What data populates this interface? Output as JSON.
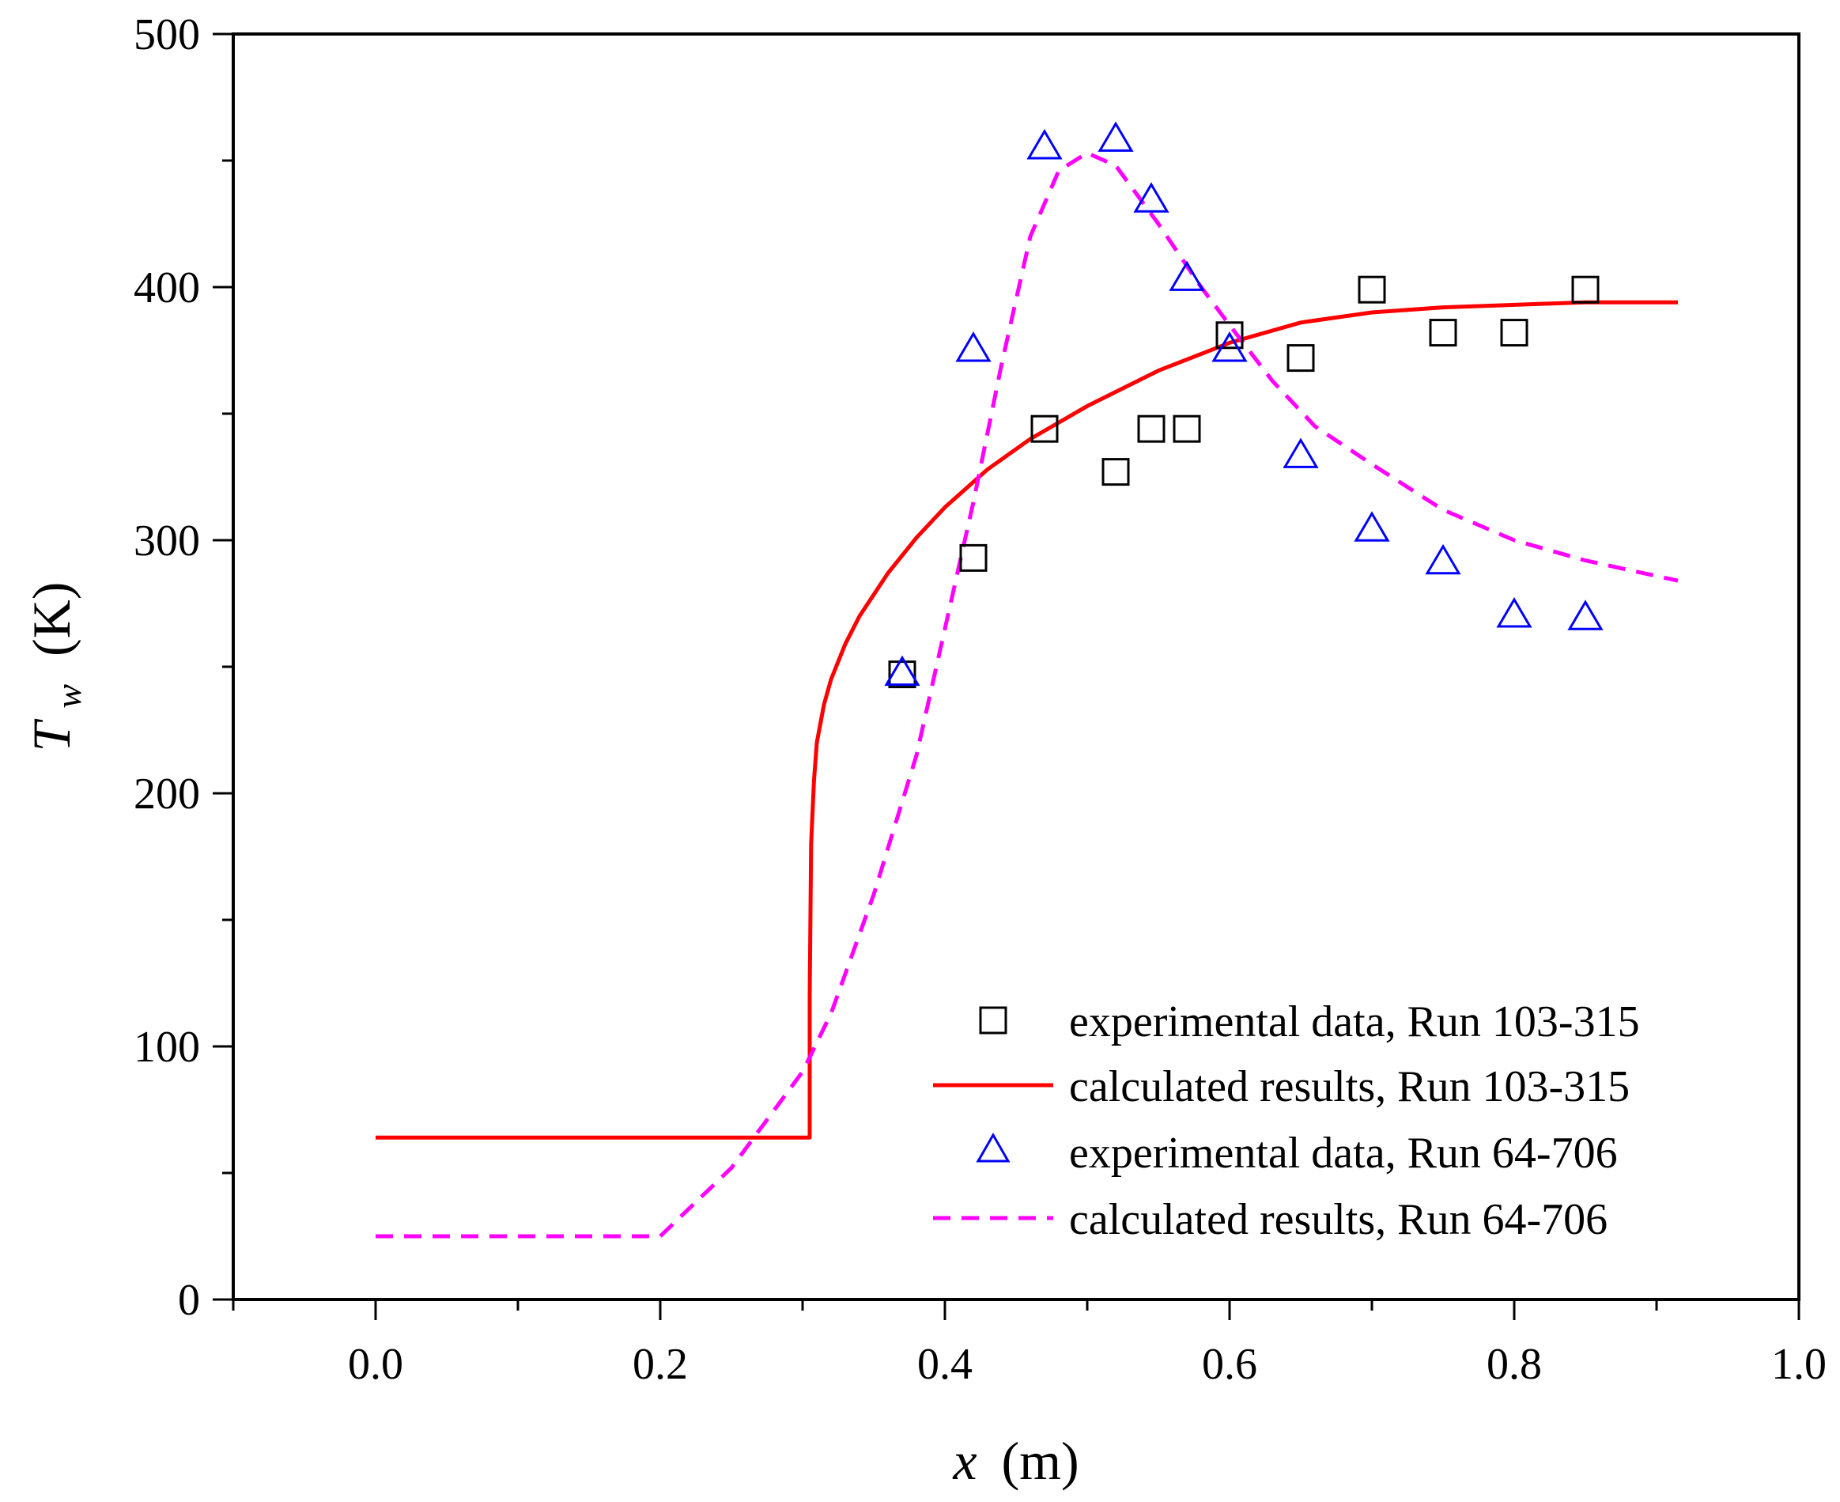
{
  "chart_data": {
    "type": "scatter",
    "title": "",
    "xlabel": {
      "var": "x",
      "unit": "(m)"
    },
    "ylabel": {
      "var": "T",
      "sub": "w",
      "unit": "(K)"
    },
    "xlim": [
      -0.1,
      1.0
    ],
    "ylim": [
      0,
      500
    ],
    "xticks": [
      "0.0",
      "0.2",
      "0.4",
      "0.6",
      "0.8",
      "1.0"
    ],
    "xtick_values": [
      0.0,
      0.2,
      0.4,
      0.6,
      0.8,
      1.0
    ],
    "yticks": [
      "0",
      "100",
      "200",
      "300",
      "400",
      "500"
    ],
    "ytick_values": [
      0,
      100,
      200,
      300,
      400,
      500
    ],
    "grid": false,
    "legend_position": "bottom-right",
    "series": [
      {
        "name": "experimental data, Run 103-315",
        "kind": "scatter",
        "marker": "square",
        "color": "#000000",
        "x": [
          0.37,
          0.42,
          0.47,
          0.52,
          0.545,
          0.57,
          0.6,
          0.65,
          0.7,
          0.75,
          0.8,
          0.85
        ],
        "y": [
          247,
          293,
          344,
          327,
          344,
          344,
          381,
          372,
          399,
          382,
          382,
          399
        ]
      },
      {
        "name": "calculated results, Run 103-315",
        "kind": "line",
        "style": "solid",
        "color": "#ff0000",
        "x": [
          0.0,
          0.305,
          0.305,
          0.306,
          0.308,
          0.31,
          0.315,
          0.32,
          0.33,
          0.34,
          0.36,
          0.38,
          0.4,
          0.43,
          0.46,
          0.5,
          0.55,
          0.6,
          0.65,
          0.7,
          0.75,
          0.8,
          0.85,
          0.915
        ],
        "y": [
          64,
          64,
          120,
          180,
          205,
          220,
          235,
          245,
          259,
          270,
          287,
          301,
          313,
          328,
          340,
          353,
          367,
          378,
          386,
          390,
          392,
          393,
          394,
          394
        ]
      },
      {
        "name": "experimental data, Run 64-706",
        "kind": "scatter",
        "marker": "triangle",
        "color": "#0000ff",
        "x": [
          0.37,
          0.42,
          0.47,
          0.52,
          0.545,
          0.57,
          0.6,
          0.65,
          0.7,
          0.75,
          0.8,
          0.85
        ],
        "y": [
          247,
          375,
          455,
          458,
          434,
          403,
          375,
          333,
          304,
          291,
          270,
          269
        ]
      },
      {
        "name": "calculated results, Run 64-706",
        "kind": "line",
        "style": "dashed",
        "color": "#ff00ff",
        "x": [
          0.0,
          0.2,
          0.25,
          0.3,
          0.32,
          0.35,
          0.38,
          0.4,
          0.42,
          0.44,
          0.46,
          0.48,
          0.5,
          0.52,
          0.55,
          0.58,
          0.6,
          0.63,
          0.66,
          0.7,
          0.75,
          0.8,
          0.85,
          0.915
        ],
        "y": [
          25,
          25,
          52,
          90,
          113,
          160,
          215,
          265,
          315,
          370,
          420,
          446,
          453,
          448,
          425,
          400,
          385,
          363,
          345,
          330,
          312,
          300,
          292,
          284
        ]
      }
    ]
  }
}
